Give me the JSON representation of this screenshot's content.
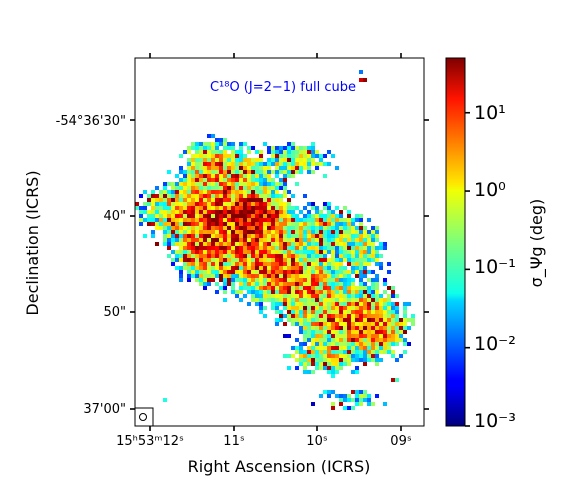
{
  "chart_data": {
    "type": "heatmap",
    "title": "C¹⁸O (J=2−1) full cube",
    "xlabel": "Right Ascension (ICRS)",
    "ylabel": "Declination (ICRS)",
    "x_ticks": [
      "15ʰ53ᵐ12ˢ",
      "11ˢ",
      "10ˢ",
      "09ˢ"
    ],
    "y_ticks": [
      "-54°36'30\"",
      "40\"",
      "50\"",
      "37'00\""
    ],
    "colorbar": {
      "label": "σ_Ψg (deg)",
      "scale": "log",
      "range": [
        0.001,
        50
      ],
      "colormap": "jet",
      "tick_values": [
        0.001,
        0.01,
        0.1,
        1,
        10
      ],
      "tick_labels": [
        "10⁻³",
        "10⁻²",
        "10⁻¹",
        "10⁰",
        "10¹"
      ]
    },
    "beam": "circle, lower-left"
  }
}
